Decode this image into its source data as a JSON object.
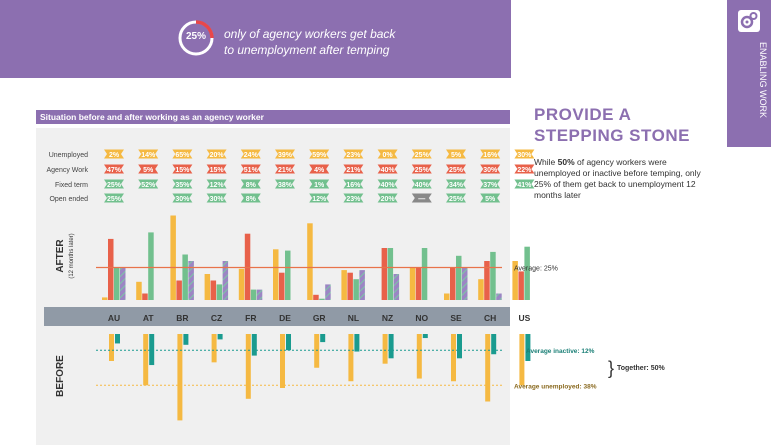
{
  "banner": {
    "percent": "25%",
    "line1": "only of agency workers get back",
    "line2": "to unemployment after temping"
  },
  "side_tab": {
    "label": "ENABLING WORK",
    "icon": "gears-icon"
  },
  "chart_title": "Situation before and after working as an agency worker",
  "headline": {
    "line1": "PROVIDE A",
    "line2": "STEPPING STONE"
  },
  "body": {
    "pre": "While ",
    "highlight": "50%",
    "post": " of agency workers were unemployed or inactive before temping, only 25% of them get back to unemployment 12 months later"
  },
  "colors": {
    "purple": "#8c6fb0",
    "unemployed": "#f5b942",
    "agency": "#e8614a",
    "fixed": "#72c08e",
    "open": "#9b86c4",
    "inactive": "#1a9b8f",
    "avg_line": "#e8734a"
  },
  "chart_data": {
    "type": "bar",
    "categories": [
      "AU",
      "AT",
      "BR",
      "CZ",
      "FR",
      "DE",
      "GR",
      "NL",
      "NZ",
      "NO",
      "SE",
      "CH",
      "US"
    ],
    "status_table": {
      "rows": [
        "Unemployed",
        "Agency Work",
        "Fixed term",
        "Open ended"
      ],
      "values": [
        [
          "2%",
          "14%",
          "65%",
          "20%",
          "24%",
          "39%",
          "59%",
          "23%",
          "0%",
          "25%",
          "5%",
          "16%",
          "30%"
        ],
        [
          "47%",
          "5%",
          "15%",
          "15%",
          "51%",
          "21%",
          "4%",
          "21%",
          "40%",
          "25%",
          "25%",
          "30%",
          "22%"
        ],
        [
          "25%",
          "52%",
          "35%",
          "12%",
          "8%",
          "38%",
          "1%",
          "16%",
          "40%",
          "40%",
          "34%",
          "37%",
          "41%"
        ],
        [
          "25%",
          "",
          "30%",
          "30%",
          "8%",
          "",
          "12%",
          "23%",
          "20%",
          "—",
          "25%",
          "5%",
          ""
        ]
      ]
    },
    "after": {
      "title": "AFTER",
      "subtitle": "(12 months later)",
      "series": [
        {
          "name": "Unemployed",
          "values": [
            2,
            14,
            65,
            20,
            24,
            39,
            59,
            23,
            0,
            25,
            5,
            16,
            30
          ]
        },
        {
          "name": "Agency Work",
          "values": [
            47,
            5,
            15,
            15,
            51,
            21,
            4,
            21,
            40,
            25,
            25,
            30,
            22
          ]
        },
        {
          "name": "Fixed term",
          "values": [
            25,
            52,
            35,
            12,
            8,
            38,
            1,
            16,
            40,
            40,
            34,
            37,
            41
          ]
        },
        {
          "name": "Open ended",
          "values": [
            25,
            0,
            30,
            30,
            8,
            0,
            12,
            23,
            20,
            0,
            25,
            5,
            0
          ]
        }
      ],
      "average": 25,
      "average_label": "Average: 25%"
    },
    "before": {
      "title": "BEFORE",
      "series": [
        {
          "name": "Unemployed",
          "values": [
            20,
            38,
            64,
            21,
            48,
            40,
            25,
            35,
            22,
            33,
            35,
            50,
            38
          ]
        },
        {
          "name": "Inactive",
          "values": [
            7,
            23,
            8,
            4,
            16,
            12,
            6,
            13,
            18,
            3,
            18,
            15,
            20
          ]
        }
      ],
      "average_inactive": 12,
      "average_unemployed": 38,
      "labels": {
        "inactive": "Average inactive: 12%",
        "unemployed": "Average unemployed: 38%",
        "together": "Together: 50%"
      }
    }
  }
}
